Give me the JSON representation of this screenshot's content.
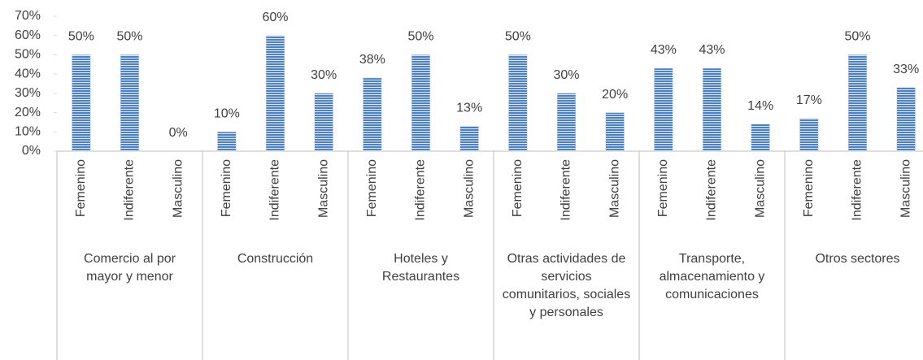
{
  "chart_data": {
    "type": "bar",
    "color": "#4f81bd",
    "ylim": [
      0,
      70
    ],
    "yticks": [
      {
        "value": 0,
        "label": "0%"
      },
      {
        "value": 10,
        "label": "10%"
      },
      {
        "value": 20,
        "label": "20%"
      },
      {
        "value": 30,
        "label": "30%"
      },
      {
        "value": 40,
        "label": "40%"
      },
      {
        "value": 50,
        "label": "50%"
      },
      {
        "value": 60,
        "label": "60%"
      },
      {
        "value": 70,
        "label": "70%"
      }
    ],
    "groups": [
      {
        "label": "Comercio al por mayor y menor",
        "categories": [
          "Femenino",
          "Indiferente",
          "Masculino"
        ],
        "values": [
          50,
          50,
          0
        ],
        "value_labels": [
          "50%",
          "50%",
          "0%"
        ]
      },
      {
        "label": "Construcción",
        "categories": [
          "Femenino",
          "Indiferente",
          "Masculino"
        ],
        "values": [
          10,
          60,
          30
        ],
        "value_labels": [
          "10%",
          "60%",
          "30%"
        ]
      },
      {
        "label": "Hoteles y Restaurantes",
        "categories": [
          "Femenino",
          "Indiferente",
          "Masculino"
        ],
        "values": [
          38,
          50,
          13
        ],
        "value_labels": [
          "38%",
          "50%",
          "13%"
        ]
      },
      {
        "label": "Otras actividades de servicios comunitarios, sociales y personales",
        "categories": [
          "Femenino",
          "Indiferente",
          "Masculino"
        ],
        "values": [
          50,
          30,
          20
        ],
        "value_labels": [
          "50%",
          "30%",
          "20%"
        ]
      },
      {
        "label": "Transporte, almacenamiento y comunicaciones",
        "categories": [
          "Femenino",
          "Indiferente",
          "Masculino"
        ],
        "values": [
          43,
          43,
          14
        ],
        "value_labels": [
          "43%",
          "43%",
          "14%"
        ]
      },
      {
        "label": "Otros sectores",
        "categories": [
          "Femenino",
          "Indiferente",
          "Masculino"
        ],
        "values": [
          17,
          50,
          33
        ],
        "value_labels": [
          "17%",
          "50%",
          "33%"
        ]
      }
    ]
  }
}
